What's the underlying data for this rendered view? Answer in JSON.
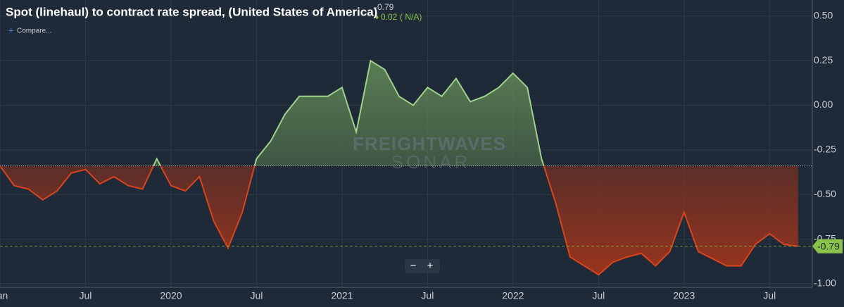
{
  "chart_data": {
    "type": "line",
    "title": "Spot (linehaul) to contract rate spread, (United States of America)",
    "header_value": "-0.79",
    "change": "0.02",
    "change_note": "( N/A)",
    "compare": "Compare...",
    "watermark": [
      "FREIGHTWAVES",
      "SONAR"
    ],
    "zoom": [
      "−",
      "+"
    ],
    "x": [
      "2019-01",
      "2019-02",
      "2019-03",
      "2019-04",
      "2019-05",
      "2019-06",
      "2019-07",
      "2019-08",
      "2019-09",
      "2019-10",
      "2019-11",
      "2019-12",
      "2020-01",
      "2020-02",
      "2020-03",
      "2020-04",
      "2020-05",
      "2020-06",
      "2020-07",
      "2020-08",
      "2020-09",
      "2020-10",
      "2020-11",
      "2020-12",
      "2021-01",
      "2021-02",
      "2021-03",
      "2021-04",
      "2021-05",
      "2021-06",
      "2021-07",
      "2021-08",
      "2021-09",
      "2021-10",
      "2021-11",
      "2021-12",
      "2022-01",
      "2022-02",
      "2022-03",
      "2022-04",
      "2022-05",
      "2022-06",
      "2022-07",
      "2022-08",
      "2022-09",
      "2022-10",
      "2022-11",
      "2022-12",
      "2023-01",
      "2023-02",
      "2023-03",
      "2023-04",
      "2023-05",
      "2023-06",
      "2023-07",
      "2023-08",
      "2023-09"
    ],
    "series": [
      {
        "name": "Spot (linehaul) to contract rate spread",
        "color_above": "#9fd18b",
        "color_below": "#d9441c",
        "values": [
          -0.34,
          -0.45,
          -0.47,
          -0.53,
          -0.48,
          -0.38,
          -0.36,
          -0.44,
          -0.4,
          -0.45,
          -0.47,
          -0.3,
          -0.45,
          -0.48,
          -0.4,
          -0.65,
          -0.8,
          -0.6,
          -0.3,
          -0.2,
          -0.05,
          0.05,
          0.05,
          0.05,
          0.1,
          -0.15,
          0.25,
          0.2,
          0.05,
          0.0,
          0.1,
          0.05,
          0.15,
          0.02,
          0.05,
          0.1,
          0.18,
          0.1,
          -0.3,
          -0.55,
          -0.85,
          -0.9,
          -0.95,
          -0.88,
          -0.85,
          -0.83,
          -0.9,
          -0.82,
          -0.6,
          -0.82,
          -0.86,
          -0.9,
          -0.9,
          -0.78,
          -0.72,
          -0.78,
          -0.79
        ]
      }
    ],
    "threshold": -0.34,
    "xlim": [
      "2019-01",
      "2023-10"
    ],
    "xticks": [
      {
        "value": "2019-01",
        "label": "Jan"
      },
      {
        "value": "2019-07",
        "label": "Jul"
      },
      {
        "value": "2020-01",
        "label": "2020"
      },
      {
        "value": "2020-07",
        "label": "Jul"
      },
      {
        "value": "2021-01",
        "label": "2021"
      },
      {
        "value": "2021-07",
        "label": "Jul"
      },
      {
        "value": "2022-01",
        "label": "2022"
      },
      {
        "value": "2022-07",
        "label": "Jul"
      },
      {
        "value": "2023-01",
        "label": "2023"
      },
      {
        "value": "2023-07",
        "label": "Jul"
      }
    ],
    "ylim": [
      -1.02,
      0.59
    ],
    "yticks": [
      {
        "value": 0.5,
        "label": "0.50"
      },
      {
        "value": 0.25,
        "label": "0.25"
      },
      {
        "value": 0,
        "label": "0.00"
      },
      {
        "value": -0.25,
        "label": "-0.25"
      },
      {
        "value": -0.5,
        "label": "-0.50"
      },
      {
        "value": -0.75,
        "label": "-0.75"
      },
      {
        "value": -1,
        "label": "-1.00"
      }
    ],
    "grid": true
  }
}
